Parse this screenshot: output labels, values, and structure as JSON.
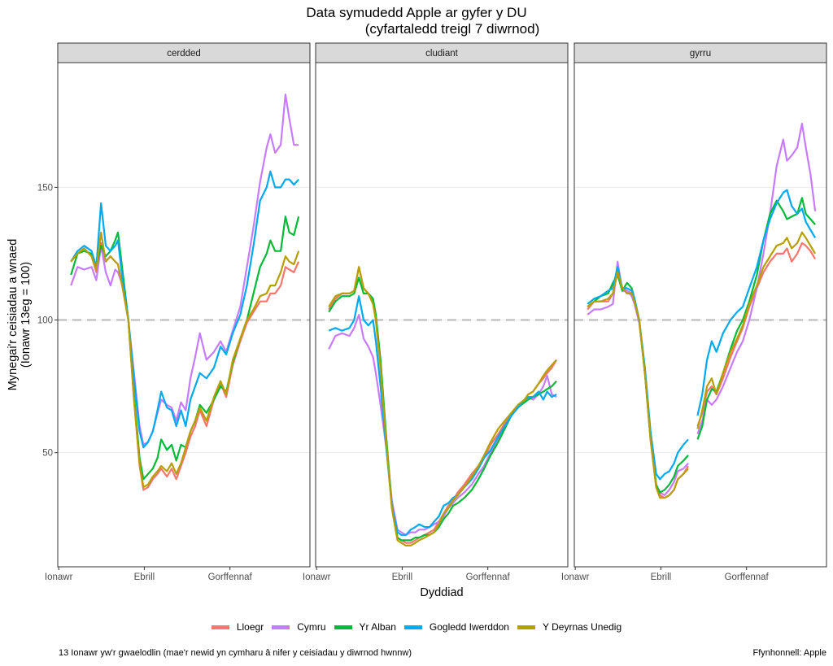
{
  "chart_data": {
    "type": "line",
    "title": "Data symudedd Apple ar gyfer y DU",
    "subtitle": "(cyfartaledd treigl 7 diwrnod)",
    "xlabel": "Dyddiad",
    "ylabel": "Mynegai'r ceisiadau a wnaed",
    "ylabel2": "(Ionawr 13eg = 100)",
    "x_unit": "day of year 2020 (Ionawr 1 = 0)",
    "xlim": [
      -1,
      267
    ],
    "ylim": [
      7,
      197
    ],
    "x_ticks": [
      {
        "value": 0,
        "label": "Ionawr"
      },
      {
        "value": 91,
        "label": "Ebrill"
      },
      {
        "value": 182,
        "label": "Gorffennaf"
      }
    ],
    "y_ticks": [
      50,
      100,
      150
    ],
    "reference_line": 100,
    "grid": true,
    "legend_position": "bottom",
    "caption": "13 Ionawr yw'r gwaelodlin (mae'r newid yn cymharu â nifer y ceisiadau y diwrnod hwnnw)",
    "source": "Ffynhonnell: Apple",
    "series_meta": [
      {
        "name": "Lloegr",
        "color": "#F8766D"
      },
      {
        "name": "Cymru",
        "color": "#C77CFF"
      },
      {
        "name": "Yr Alban",
        "color": "#00BA38"
      },
      {
        "name": "Gogledd Iwerddon",
        "color": "#00A9F4"
      },
      {
        "name": "Y Deyrnas Unedig",
        "color": "#B79F00"
      }
    ],
    "panels": [
      {
        "name": "cerdded",
        "x": [
          13,
          20,
          27,
          35,
          40,
          45,
          50,
          55,
          60,
          63,
          68,
          74,
          80,
          86,
          90,
          95,
          100,
          105,
          109,
          115,
          120,
          125,
          130,
          135,
          140,
          145,
          150,
          157,
          165,
          172,
          178,
          185,
          193,
          200,
          207,
          214,
          221,
          225,
          230,
          236,
          241,
          245,
          250,
          255
        ],
        "series": [
          {
            "name": "Lloegr",
            "values": [
              122,
              125,
              127,
              124,
              118,
              129,
              122,
              124,
              122,
              121,
              112,
              100,
              70,
              45,
              36,
              37,
              40,
              42,
              44,
              41,
              44,
              40,
              45,
              50,
              56,
              60,
              66,
              60,
              70,
              76,
              71,
              83,
              92,
              99,
              103,
              107,
              107,
              110,
              110,
              113,
              120,
              119,
              118,
              122
            ]
          },
          {
            "name": "Cymru",
            "values": [
              113,
              120,
              119,
              120,
              115,
              128,
              118,
              113,
              119,
              118,
              113,
              100,
              80,
              60,
              53,
              54,
              58,
              65,
              70,
              68,
              67,
              62,
              69,
              66,
              78,
              86,
              95,
              85,
              88,
              92,
              88,
              96,
              105,
              120,
              135,
              152,
              165,
              170,
              163,
              166,
              185,
              176,
              166,
              166
            ]
          },
          {
            "name": "Yr Alban",
            "values": [
              117,
              125,
              126,
              125,
              120,
              128,
              124,
              126,
              130,
              133,
              118,
              100,
              72,
              48,
              40,
              42,
              44,
              48,
              55,
              51,
              53,
              47,
              53,
              52,
              58,
              62,
              68,
              65,
              70,
              75,
              73,
              84,
              93,
              100,
              110,
              120,
              125,
              130,
              126,
              126,
              139,
              133,
              132,
              139
            ]
          },
          {
            "name": "Gogledd Iwerddon",
            "values": [
              122,
              126,
              128,
              126,
              120,
              144,
              128,
              126,
              128,
              130,
              115,
              100,
              78,
              58,
              52,
              54,
              58,
              66,
              73,
              67,
              66,
              60,
              66,
              60,
              70,
              75,
              80,
              78,
              82,
              90,
              87,
              95,
              102,
              113,
              128,
              145,
              150,
              156,
              150,
              150,
              153,
              153,
              151,
              153
            ]
          },
          {
            "name": "Y Deyrnas Unedig",
            "values": [
              122,
              125,
              127,
              124,
              119,
              133,
              122,
              124,
              122,
              121,
              112,
              100,
              70,
              46,
              37,
              38,
              41,
              43,
              45,
              43,
              46,
              42,
              46,
              52,
              58,
              62,
              67,
              62,
              71,
              77,
              72,
              85,
              93,
              100,
              104,
              109,
              110,
              113,
              113,
              118,
              124,
              122,
              121,
              126
            ]
          }
        ]
      },
      {
        "name": "cludiant",
        "x": [
          13,
          20,
          27,
          35,
          40,
          45,
          50,
          55,
          60,
          63,
          68,
          74,
          80,
          86,
          90,
          95,
          100,
          105,
          109,
          115,
          120,
          125,
          130,
          135,
          140,
          145,
          150,
          157,
          165,
          172,
          178,
          185,
          193,
          200,
          207,
          214,
          221,
          225,
          230,
          236,
          241,
          245,
          250,
          255
        ],
        "series": [
          {
            "name": "Lloegr",
            "values": [
              104,
              108,
              110,
              110,
              111,
              120,
              112,
              110,
              107,
              100,
              82,
              55,
              30,
              18,
              17,
              16,
              16,
              17,
              18,
              19,
              20,
              21,
              24,
              27,
              30,
              32,
              35,
              38,
              42,
              45,
              48,
              53,
              57,
              61,
              64,
              67,
              70,
              72,
              73,
              76,
              78,
              80,
              82,
              85
            ]
          },
          {
            "name": "Cymru",
            "values": [
              89,
              94,
              95,
              94,
              97,
              102,
              93,
              90,
              86,
              80,
              68,
              52,
              32,
              21,
              20,
              19,
              20,
              20,
              21,
              21,
              22,
              23,
              24,
              26,
              29,
              31,
              33,
              35,
              38,
              42,
              45,
              50,
              55,
              60,
              64,
              67,
              69,
              71,
              70,
              72,
              75,
              79,
              72,
              71
            ]
          },
          {
            "name": "Yr Alban",
            "values": [
              103,
              107,
              109,
              109,
              110,
              116,
              110,
              110,
              108,
              102,
              85,
              56,
              30,
              18,
              17,
              17,
              17,
              18,
              18,
              19,
              19,
              20,
              22,
              25,
              27,
              30,
              31,
              33,
              36,
              40,
              44,
              49,
              54,
              59,
              64,
              67,
              69,
              70,
              71,
              72,
              73,
              74,
              75,
              77
            ]
          },
          {
            "name": "Gogledd Iwerddon",
            "values": [
              96,
              97,
              96,
              97,
              100,
              109,
              100,
              98,
              100,
              92,
              75,
              52,
              30,
              20,
              19,
              19,
              21,
              22,
              23,
              22,
              22,
              24,
              26,
              30,
              31,
              33,
              34,
              37,
              40,
              44,
              48,
              51,
              56,
              60,
              64,
              67,
              70,
              71,
              71,
              73,
              70,
              73,
              71,
              72
            ]
          },
          {
            "name": "Y Deyrnas Unedig",
            "values": [
              105,
              109,
              110,
              110,
              111,
              120,
              112,
              110,
              106,
              100,
              82,
              54,
              29,
              17,
              16,
              15,
              15,
              16,
              17,
              18,
              19,
              20,
              23,
              27,
              29,
              32,
              34,
              37,
              41,
              45,
              49,
              54,
              59,
              62,
              65,
              68,
              70,
              72,
              73,
              76,
              79,
              81,
              83,
              85
            ]
          }
        ]
      },
      {
        "name": "gyrru",
        "x": [
          13,
          20,
          27,
          35,
          40,
          45,
          50,
          55,
          60,
          63,
          68,
          74,
          80,
          86,
          90,
          95,
          100,
          105,
          109,
          115,
          120,
          125,
          130,
          135,
          140,
          145,
          150,
          157,
          165,
          172,
          178,
          185,
          193,
          200,
          207,
          214,
          221,
          225,
          230,
          236,
          241,
          245,
          250,
          255
        ],
        "series": [
          {
            "name": "Lloegr",
            "values": [
              104,
              107,
              107,
              107,
              110,
              118,
              112,
              111,
              110,
              107,
              100,
              80,
              55,
              38,
              34,
              33,
              34,
              36,
              40,
              42,
              45,
              null,
              60,
              65,
              73,
              75,
              72,
              78,
              86,
              92,
              97,
              105,
              112,
              118,
              122,
              125,
              125,
              127,
              122,
              125,
              129,
              128,
              126,
              123
            ]
          },
          {
            "name": "Cymru",
            "values": [
              102,
              104,
              104,
              105,
              106,
              122,
              111,
              111,
              109,
              106,
              99,
              80,
              55,
              37,
              35,
              34,
              36,
              39,
              43,
              44,
              46,
              null,
              57,
              62,
              70,
              68,
              70,
              75,
              82,
              88,
              92,
              100,
              112,
              125,
              140,
              158,
              168,
              160,
              162,
              165,
              174,
              165,
              155,
              141
            ]
          },
          {
            "name": "Yr Alban",
            "values": [
              105,
              107,
              109,
              110,
              114,
              117,
              111,
              114,
              112,
              108,
              100,
              80,
              56,
              38,
              35,
              36,
              38,
              41,
              45,
              47,
              49,
              null,
              55,
              60,
              70,
              74,
              73,
              80,
              89,
              96,
              100,
              107,
              117,
              130,
              140,
              145,
              141,
              138,
              139,
              140,
              146,
              140,
              138,
              136
            ]
          },
          {
            "name": "Gogledd Iwerddon",
            "values": [
              106,
              108,
              109,
              111,
              112,
              120,
              112,
              112,
              111,
              108,
              100,
              82,
              58,
              42,
              40,
              42,
              43,
              46,
              50,
              53,
              55,
              null,
              64,
              72,
              85,
              92,
              88,
              95,
              100,
              103,
              105,
              112,
              120,
              130,
              138,
              144,
              148,
              149,
              143,
              140,
              142,
              137,
              134,
              131
            ]
          },
          {
            "name": "Y Deyrnas Unedig",
            "values": [
              105,
              107,
              107,
              108,
              110,
              118,
              112,
              110,
              110,
              107,
              100,
              80,
              55,
              37,
              33,
              33,
              34,
              36,
              40,
              42,
              44,
              null,
              59,
              66,
              75,
              78,
              72,
              80,
              88,
              93,
              98,
              106,
              113,
              120,
              124,
              128,
              129,
              131,
              127,
              129,
              133,
              131,
              128,
              125
            ]
          }
        ]
      }
    ]
  }
}
